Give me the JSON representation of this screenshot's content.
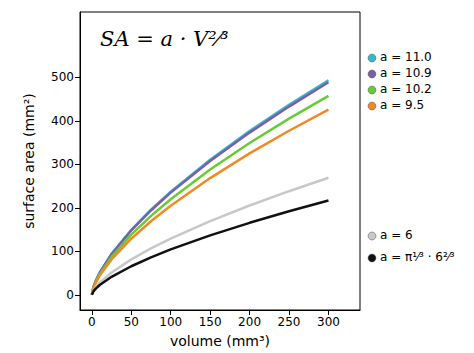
{
  "chart_data": {
    "type": "line",
    "annotation": "SA = a · V²⁄³",
    "x_label": "volume (mm³)",
    "y_label": "surface area (mm²)",
    "x": [
      0,
      2,
      5,
      10,
      25,
      50,
      75,
      100,
      150,
      200,
      250,
      300
    ],
    "series": [
      {
        "name": "a = 11.0",
        "color": "#33bbcc",
        "values": [
          0,
          17.5,
          32.2,
          51.1,
          94.1,
          149.3,
          195.6,
          237.0,
          310.5,
          376.2,
          436.5,
          493.0
        ]
      },
      {
        "name": "a = 10.9",
        "color": "#7b5ea7",
        "values": [
          0,
          17.3,
          31.9,
          50.6,
          93.2,
          147.9,
          193.8,
          234.8,
          307.7,
          372.8,
          432.6,
          488.5
        ]
      },
      {
        "name": "a = 10.2",
        "color": "#66cc33",
        "values": [
          0,
          16.2,
          29.8,
          47.3,
          87.2,
          138.4,
          181.4,
          219.7,
          288.0,
          348.8,
          404.8,
          457.1
        ]
      },
      {
        "name": "a = 9.5",
        "color": "#f08a24",
        "values": [
          0,
          15.1,
          27.8,
          44.1,
          81.2,
          128.9,
          168.9,
          204.7,
          268.2,
          324.9,
          377.0,
          425.7
        ]
      },
      {
        "name": "a = 6",
        "color": "#c8c8c8",
        "values": [
          0,
          9.5,
          17.5,
          27.9,
          51.3,
          81.4,
          106.7,
          129.3,
          169.4,
          205.2,
          238.1,
          268.9
        ]
      },
      {
        "name": "a = π¹⁄³ · 6²⁄³",
        "color": "#111111",
        "values": [
          0,
          7.7,
          14.1,
          22.4,
          41.3,
          65.6,
          86.0,
          104.2,
          136.5,
          165.4,
          191.9,
          216.7
        ]
      }
    ],
    "xlim": [
      -15,
      340
    ],
    "xticks": [
      0,
      50,
      100,
      150,
      200,
      250,
      300
    ],
    "ylim": [
      -35,
      650
    ],
    "yticks": [
      0,
      100,
      200,
      300,
      400,
      500
    ],
    "grid": false
  }
}
